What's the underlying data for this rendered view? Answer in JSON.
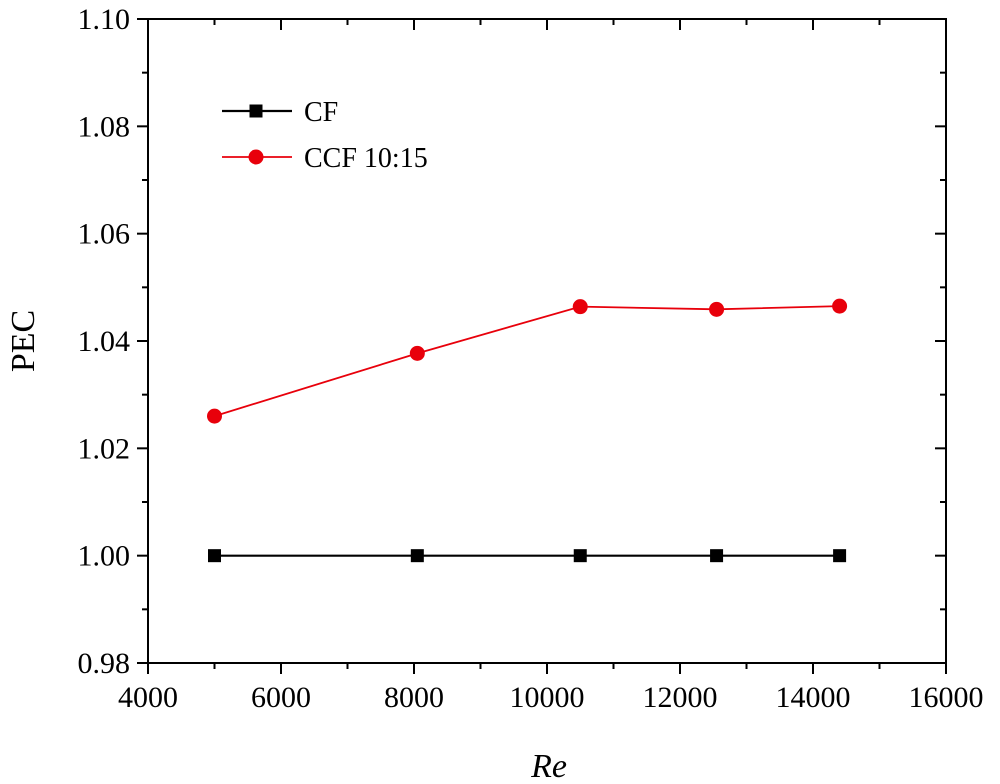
{
  "chart_data": {
    "type": "line",
    "title": "",
    "xlabel": "Re",
    "ylabel": "PEC",
    "xlim": [
      4000,
      16000
    ],
    "ylim": [
      0.98,
      1.1
    ],
    "xticks": [
      4000,
      6000,
      8000,
      10000,
      12000,
      14000,
      16000
    ],
    "yticks": [
      0.98,
      1.0,
      1.02,
      1.04,
      1.06,
      1.08,
      1.1
    ],
    "xtick_labels": [
      "4000",
      "6000",
      "8000",
      "10000",
      "12000",
      "14000",
      "16000"
    ],
    "ytick_labels": [
      "0.98",
      "1.00",
      "1.02",
      "1.04",
      "1.06",
      "1.08",
      "1.10"
    ],
    "grid": false,
    "legend_placement": "top-left",
    "series": [
      {
        "name": "CF",
        "color": "#000000",
        "marker": "square",
        "x": [
          5000,
          8050,
          10500,
          12550,
          14400
        ],
        "y": [
          1.0,
          1.0,
          1.0,
          1.0,
          1.0
        ]
      },
      {
        "name": "CCF 10:15",
        "color": "#e8000b",
        "marker": "circle",
        "x": [
          5000,
          8050,
          10500,
          12550,
          14400
        ],
        "y": [
          1.026,
          1.0377,
          1.0464,
          1.0459,
          1.0465
        ]
      }
    ]
  }
}
